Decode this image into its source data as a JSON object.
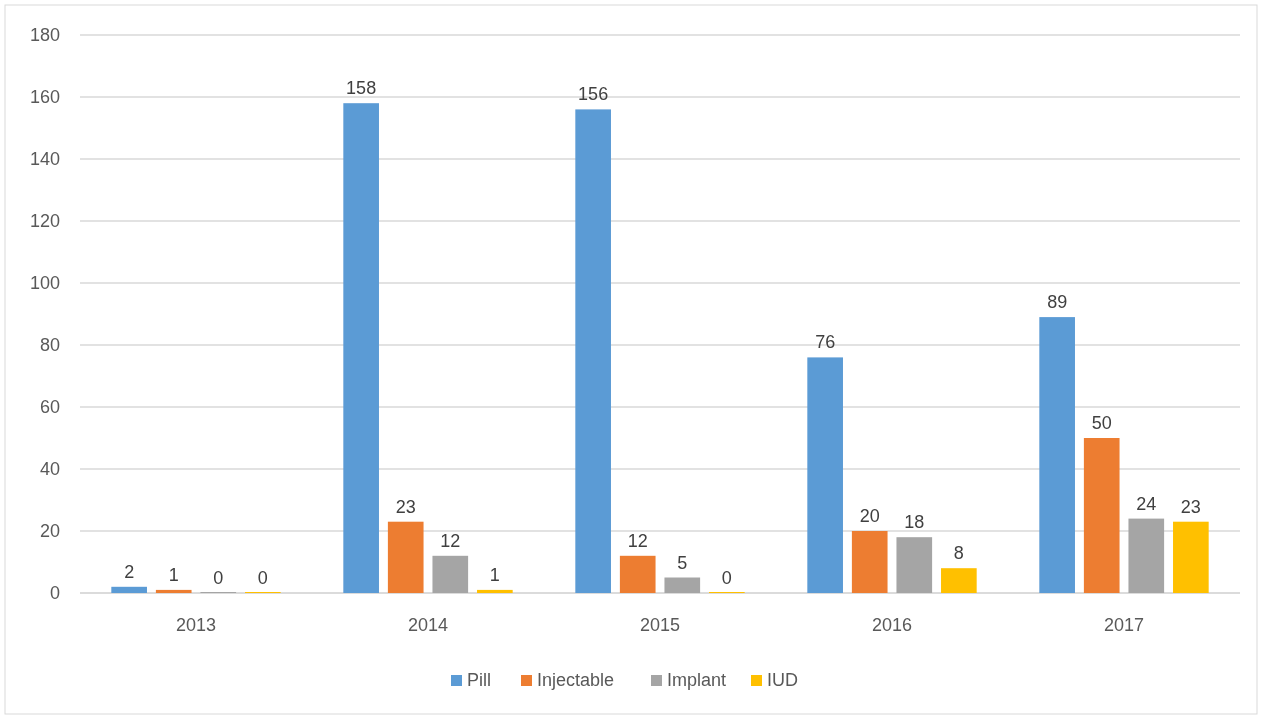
{
  "chart_data": {
    "type": "bar",
    "categories": [
      "2013",
      "2014",
      "2015",
      "2016",
      "2017"
    ],
    "series": [
      {
        "name": "Pill",
        "color": "#5b9bd5",
        "values": [
          2,
          158,
          156,
          76,
          89
        ]
      },
      {
        "name": "Injectable",
        "color": "#ed7d31",
        "values": [
          1,
          23,
          12,
          20,
          50
        ]
      },
      {
        "name": "Implant",
        "color": "#a5a5a5",
        "values": [
          0,
          12,
          5,
          18,
          24
        ]
      },
      {
        "name": "IUD",
        "color": "#ffc000",
        "values": [
          0,
          1,
          0,
          8,
          23
        ]
      }
    ],
    "ylim": [
      0,
      180
    ],
    "yticks": [
      0,
      20,
      40,
      60,
      80,
      100,
      120,
      140,
      160,
      180
    ],
    "grid": "y",
    "legend": "bottom",
    "data_labels": true
  }
}
